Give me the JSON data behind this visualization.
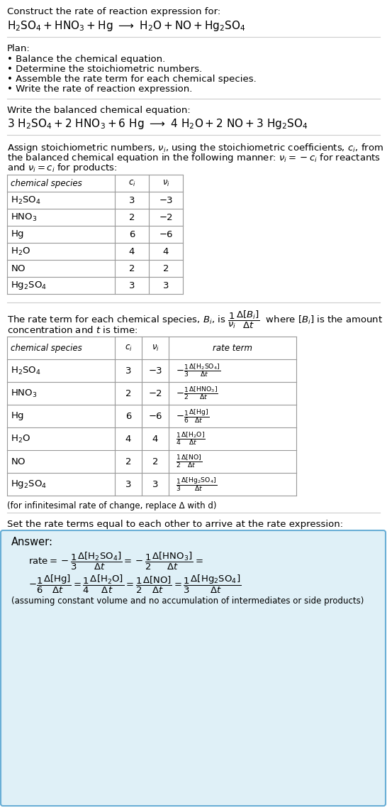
{
  "title_line1": "Construct the rate of reaction expression for:",
  "plan_header": "Plan:",
  "plan_items": [
    "• Balance the chemical equation.",
    "• Determine the stoichiometric numbers.",
    "• Assemble the rate term for each chemical species.",
    "• Write the rate of reaction expression."
  ],
  "balanced_header": "Write the balanced chemical equation:",
  "stoich_lines": [
    "Assign stoichiometric numbers, $\\nu_i$, using the stoichiometric coefficients, $c_i$, from",
    "the balanced chemical equation in the following manner: $\\nu_i = -c_i$ for reactants",
    "and $\\nu_i = c_i$ for products:"
  ],
  "table1_species": [
    "$\\mathrm{H_2SO_4}$",
    "$\\mathrm{HNO_3}$",
    "$\\mathrm{Hg}$",
    "$\\mathrm{H_2O}$",
    "$\\mathrm{NO}$",
    "$\\mathrm{Hg_2SO_4}$"
  ],
  "table1_ci": [
    "3",
    "2",
    "6",
    "4",
    "2",
    "3"
  ],
  "table1_vi": [
    "−3",
    "−2",
    "−6",
    "4",
    "2",
    "3"
  ],
  "table2_species": [
    "$\\mathrm{H_2SO_4}$",
    "$\\mathrm{HNO_3}$",
    "$\\mathrm{Hg}$",
    "$\\mathrm{H_2O}$",
    "$\\mathrm{NO}$",
    "$\\mathrm{Hg_2SO_4}$"
  ],
  "table2_ci": [
    "3",
    "2",
    "6",
    "4",
    "2",
    "3"
  ],
  "table2_vi": [
    "−3",
    "−2",
    "−6",
    "4",
    "2",
    "3"
  ],
  "table2_rate": [
    "$-\\frac{1}{3}\\frac{\\Delta[\\mathrm{H_2SO_4}]}{\\Delta t}$",
    "$-\\frac{1}{2}\\frac{\\Delta[\\mathrm{HNO_3}]}{\\Delta t}$",
    "$-\\frac{1}{6}\\frac{\\Delta[\\mathrm{Hg}]}{\\Delta t}$",
    "$\\frac{1}{4}\\frac{\\Delta[\\mathrm{H_2O}]}{\\Delta t}$",
    "$\\frac{1}{2}\\frac{\\Delta[\\mathrm{NO}]}{\\Delta t}$",
    "$\\frac{1}{3}\\frac{\\Delta[\\mathrm{Hg_2SO_4}]}{\\Delta t}$"
  ],
  "infinitesimal_note": "(for infinitesimal rate of change, replace Δ with d)",
  "set_rate_text": "Set the rate terms equal to each other to arrive at the rate expression:",
  "answer_box_color": "#dff0f7",
  "answer_border_color": "#6aafd6",
  "bg_color": "#ffffff",
  "table_line_color": "#999999",
  "sep_line_color": "#cccccc"
}
